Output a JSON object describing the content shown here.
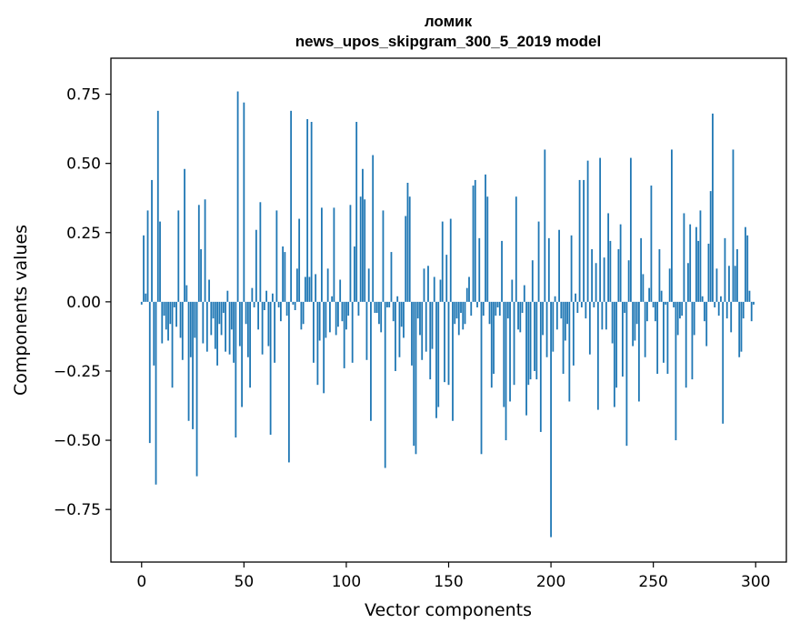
{
  "chart_data": {
    "type": "bar",
    "title": "ломик",
    "subtitle": "news_upos_skipgram_300_5_2019 model",
    "xlabel": "Vector components",
    "ylabel": "Components values",
    "xlim": [
      -15,
      315
    ],
    "ylim": [
      -0.94,
      0.88
    ],
    "xticks": [
      0,
      50,
      100,
      150,
      200,
      250,
      300
    ],
    "yticks": [
      -0.75,
      -0.5,
      -0.25,
      0.0,
      0.25,
      0.5,
      0.75
    ],
    "ytick_labels": [
      "−0.75",
      "−0.50",
      "−0.25",
      "0.00",
      "0.25",
      "0.50",
      "0.75"
    ],
    "bar_color": "#1f77b4",
    "values": [
      -0.01,
      0.24,
      0.03,
      0.33,
      -0.51,
      0.44,
      -0.23,
      -0.66,
      0.69,
      0.29,
      -0.15,
      -0.05,
      -0.1,
      -0.14,
      -0.08,
      -0.31,
      -0.02,
      -0.09,
      0.33,
      -0.13,
      -0.21,
      0.48,
      0.06,
      -0.43,
      -0.2,
      -0.46,
      -0.13,
      -0.63,
      0.35,
      0.19,
      -0.15,
      0.37,
      -0.18,
      0.08,
      -0.12,
      -0.06,
      -0.17,
      -0.23,
      -0.08,
      -0.12,
      -0.04,
      -0.18,
      0.04,
      -0.19,
      -0.1,
      -0.22,
      -0.49,
      0.76,
      -0.16,
      -0.38,
      0.72,
      -0.08,
      -0.2,
      -0.31,
      0.05,
      -0.02,
      0.26,
      -0.1,
      0.36,
      -0.19,
      -0.03,
      0.04,
      -0.16,
      -0.48,
      0.03,
      -0.22,
      0.33,
      -0.02,
      -0.07,
      0.2,
      0.18,
      -0.05,
      -0.58,
      0.69,
      -0.01,
      -0.03,
      0.12,
      0.3,
      -0.1,
      -0.08,
      0.09,
      0.66,
      0.09,
      0.65,
      -0.22,
      0.1,
      -0.3,
      -0.14,
      0.34,
      -0.33,
      -0.13,
      0.12,
      -0.11,
      0.02,
      0.34,
      -0.12,
      -0.09,
      0.08,
      -0.07,
      -0.24,
      -0.1,
      -0.05,
      0.35,
      -0.22,
      0.2,
      0.65,
      -0.05,
      0.38,
      0.48,
      0.37,
      -0.21,
      0.12,
      -0.43,
      0.53,
      -0.04,
      -0.04,
      -0.08,
      -0.11,
      0.33,
      -0.6,
      -0.02,
      -0.02,
      0.18,
      -0.07,
      -0.25,
      0.02,
      -0.2,
      -0.09,
      -0.13,
      0.31,
      0.43,
      0.38,
      -0.23,
      -0.52,
      -0.55,
      -0.06,
      -0.12,
      -0.21,
      0.12,
      -0.18,
      0.13,
      -0.28,
      -0.17,
      0.09,
      -0.42,
      -0.38,
      0.08,
      0.29,
      -0.29,
      0.17,
      -0.3,
      0.3,
      -0.43,
      -0.08,
      -0.06,
      -0.12,
      -0.04,
      -0.1,
      -0.08,
      0.05,
      0.09,
      -0.05,
      0.42,
      0.44,
      -0.02,
      0.23,
      -0.55,
      -0.05,
      0.46,
      0.38,
      -0.08,
      -0.31,
      -0.26,
      -0.05,
      -0.02,
      -0.05,
      0.22,
      -0.38,
      -0.5,
      -0.06,
      -0.36,
      0.08,
      -0.3,
      0.38,
      -0.1,
      -0.11,
      -0.04,
      0.06,
      -0.41,
      -0.3,
      -0.28,
      0.15,
      -0.25,
      -0.28,
      0.29,
      -0.47,
      -0.12,
      0.55,
      -0.2,
      0.23,
      -0.85,
      -0.18,
      0.02,
      -0.1,
      0.26,
      -0.06,
      -0.26,
      -0.14,
      -0.08,
      -0.36,
      0.24,
      -0.23,
      0.03,
      -0.04,
      0.44,
      -0.02,
      0.44,
      -0.06,
      0.51,
      -0.19,
      0.19,
      -0.02,
      0.14,
      -0.39,
      0.52,
      -0.1,
      0.16,
      -0.1,
      0.32,
      0.22,
      -0.15,
      -0.38,
      -0.31,
      0.19,
      0.28,
      -0.27,
      -0.04,
      -0.52,
      0.15,
      0.52,
      -0.16,
      -0.14,
      -0.08,
      -0.36,
      0.23,
      0.1,
      -0.2,
      -0.07,
      0.05,
      0.42,
      -0.02,
      -0.07,
      -0.26,
      0.19,
      0.04,
      -0.22,
      -0.01,
      -0.26,
      0.12,
      0.55,
      -0.02,
      -0.5,
      -0.12,
      -0.06,
      -0.05,
      0.32,
      -0.31,
      0.14,
      0.28,
      -0.28,
      -0.12,
      0.27,
      0.22,
      0.33,
      0.02,
      -0.07,
      -0.16,
      0.21,
      0.4,
      0.68,
      -0.02,
      0.12,
      -0.05,
      0.02,
      -0.44,
      0.23,
      -0.06,
      0.13,
      -0.11,
      0.55,
      0.13,
      0.19,
      -0.2,
      -0.18,
      -0.06,
      0.27,
      0.24,
      0.04,
      -0.07,
      -0.01
    ]
  }
}
